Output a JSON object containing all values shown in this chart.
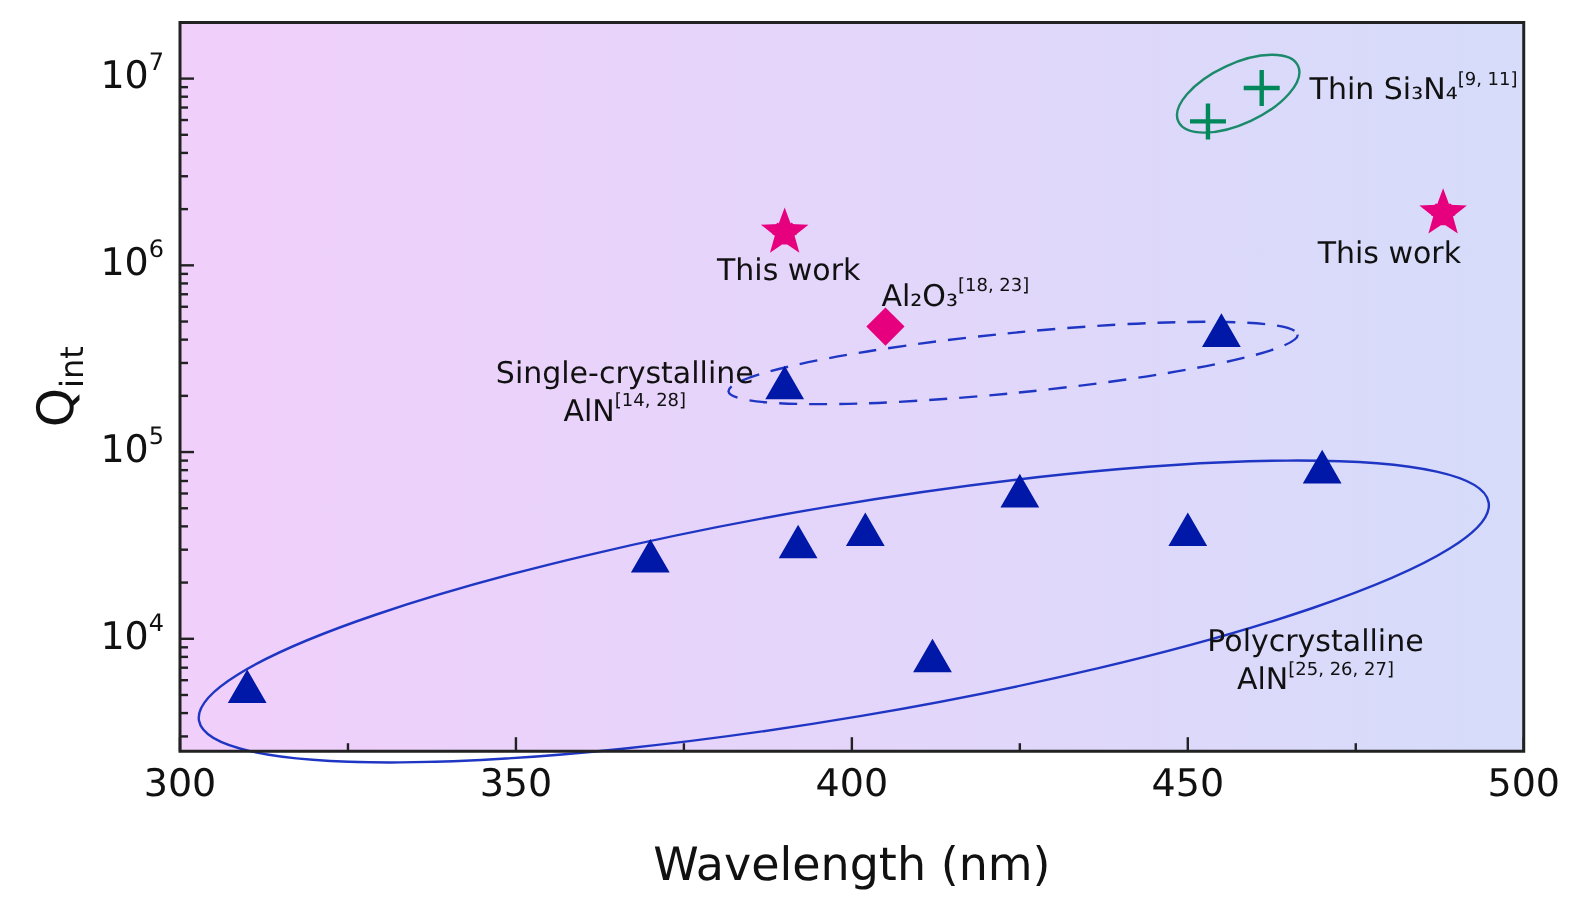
{
  "chart_data": {
    "type": "scatter",
    "xlabel": "Wavelength (nm)",
    "ylabel": "Q$_{int}$",
    "log": "y",
    "legend": false,
    "xlim": [
      300,
      500
    ],
    "xticks": [
      300,
      {
        "value": 325,
        "label": null
      },
      350,
      {
        "value": 375,
        "label": null
      },
      400,
      {
        "value": 425,
        "label": null
      },
      450,
      {
        "value": 475,
        "label": null
      },
      500
    ],
    "ylim": [
      2500,
      20000000
    ],
    "yticks": [
      {
        "value": 3000,
        "label": null
      },
      {
        "value": 4000,
        "label": null
      },
      {
        "value": 5000,
        "label": null
      },
      {
        "value": 6000,
        "label": null
      },
      {
        "value": 7000,
        "label": null
      },
      {
        "value": 8000,
        "label": null
      },
      {
        "value": 9000,
        "label": null
      },
      {
        "value": 10000,
        "label": "10$^{4}$"
      },
      {
        "value": 20000,
        "label": null
      },
      {
        "value": 30000,
        "label": null
      },
      {
        "value": 40000,
        "label": null
      },
      {
        "value": 50000,
        "label": null
      },
      {
        "value": 60000,
        "label": null
      },
      {
        "value": 70000,
        "label": null
      },
      {
        "value": 80000,
        "label": null
      },
      {
        "value": 90000,
        "label": null
      },
      {
        "value": 100000,
        "label": "10$^{5}$"
      },
      {
        "value": 200000,
        "label": null
      },
      {
        "value": 300000,
        "label": null
      },
      {
        "value": 400000,
        "label": null
      },
      {
        "value": 500000,
        "label": null
      },
      {
        "value": 600000,
        "label": null
      },
      {
        "value": 700000,
        "label": null
      },
      {
        "value": 800000,
        "label": null
      },
      {
        "value": 900000,
        "label": null
      },
      {
        "value": 1000000,
        "label": "10$^{6}$"
      },
      {
        "value": 2000000,
        "label": null
      },
      {
        "value": 3000000,
        "label": null
      },
      {
        "value": 4000000,
        "label": null
      },
      {
        "value": 5000000,
        "label": null
      },
      {
        "value": 6000000,
        "label": null
      },
      {
        "value": 7000000,
        "label": null
      },
      {
        "value": 8000000,
        "label": null
      },
      {
        "value": 9000000,
        "label": null
      },
      {
        "value": 10000000,
        "label": "10$^{7}$"
      },
      {
        "value": 20000000,
        "label": null
      }
    ],
    "series": [
      {
        "color": "#e6007e",
        "marker": "star",
        "x": [
          390,
          488
        ],
        "values": [
          1500000,
          1900000
        ]
      },
      {
        "color": "#e6007e",
        "marker": "diamond",
        "x": [
          405
        ],
        "values": [
          470000
        ]
      },
      {
        "color": "#0018a8",
        "marker": "triangle",
        "x": [
          390,
          455
        ],
        "values": [
          220000,
          420000
        ]
      },
      {
        "color": "#0018a8",
        "marker": "triangle",
        "x": [
          310,
          370,
          392,
          402,
          412,
          425,
          450,
          470
        ],
        "values": [
          5200,
          26000,
          31000,
          36000,
          7600,
          58000,
          36000,
          78000
        ]
      },
      {
        "color": "#00875a",
        "marker": "cross",
        "x": [
          453,
          461
        ],
        "values": [
          5900000,
          8900000
        ]
      }
    ],
    "annotations": [
      "This work",
      "This work",
      "Al₂O₃$^{[18, 23]}$",
      "Single-crystalline\nAlN$^{[14, 28]}$",
      "Polycrystalline\nAlN$^{[25, 26, 27]}$",
      "Thin Si₃N₄$^{[9, 11]}$"
    ]
  }
}
